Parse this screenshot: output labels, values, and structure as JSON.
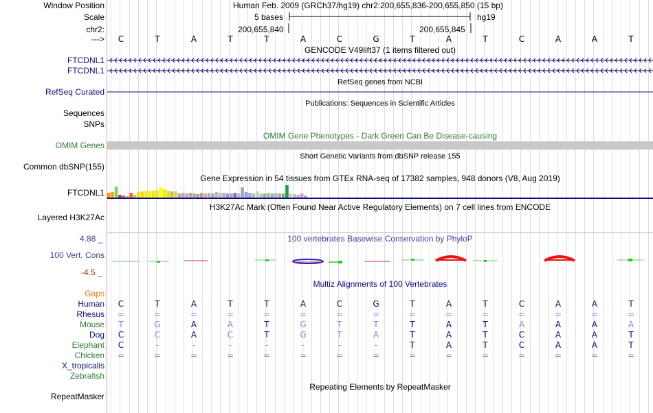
{
  "header": {
    "window_position_label": "Window Position",
    "window_position_value": "Human Feb. 2009 (GRCh37/hg19)   chr2:200,655,836-200,655,850 (15 bp)",
    "scale_label": "Scale",
    "scale_value": "5 bases",
    "scale_assembly": "hg19",
    "chrom_label": "chr2:",
    "coord_left": "200,655,840",
    "coord_right": "200,655,845",
    "strand_label": "--->"
  },
  "bases": [
    "C",
    "T",
    "A",
    "T",
    "T",
    "A",
    "C",
    "G",
    "T",
    "A",
    "T",
    "C",
    "A",
    "A",
    "T"
  ],
  "gencode": {
    "title": "GENCODE V49lift37 (1 items filtered out)",
    "transcripts": [
      "FTCDNL1",
      "FTCDNL1"
    ]
  },
  "refseq": {
    "title": "RefSeq genes from NCBI",
    "label": "RefSeq Curated"
  },
  "publications": {
    "title": "Publications: Sequences in Scientific Articles"
  },
  "labels": {
    "sequences": "Sequences",
    "snps": "SNPs",
    "common_dbsnp": "Common dbSNP(155)"
  },
  "omim": {
    "title": "OMIM Gene Phenotypes - Dark Green Can Be Disease-causing",
    "label": "OMIM Genes",
    "color": "#2e7d32"
  },
  "dbsnp": {
    "title": "Short Genetic Variants from dbSNP release 155"
  },
  "gtex": {
    "title": "Gene Expression in 54 tissues from GTEx RNA-seq of 17382 samples, 948 donors (V8, Aug 2019)",
    "label": "FTCDNL1",
    "bar_colors": [
      "#ff9900",
      "#ffaa00",
      "#88cc66",
      "#cc3333",
      "#996699",
      "#aaaaaa",
      "#ff6600",
      "#bbbbbb",
      "#ffdd00",
      "#eedd00",
      "#eeee33",
      "#ffee00",
      "#ddee00",
      "#eedd44",
      "#ffff00",
      "#eeee00",
      "#dddd33",
      "#ccbb33",
      "#ddcc66",
      "#aaaaaa",
      "#bbaa99",
      "#cc99cc",
      "#bbaa88",
      "#aaaaaa",
      "#999999",
      "#cc9988",
      "#bbbbbb",
      "#ccaa99",
      "#aaaaaa",
      "#bbbbbb",
      "#ccbbaa",
      "#aaaacc",
      "#9999bb",
      "#cc99cc",
      "#8866cc",
      "#bbbbbb",
      "#99aacc",
      "#9999ff",
      "#aaaaaa",
      "#bbbbbb",
      "#cccccc",
      "#aaccaa",
      "#99aa99",
      "#aabb99",
      "#aaaaaa",
      "#bbbbbb",
      "#aaaaaa",
      "#999999",
      "#229944",
      "#cccccc",
      "#bbbbbb",
      "#ddaaaa",
      "#cc99cc",
      "#aaaaaa"
    ],
    "bar_values": [
      0.35,
      0.4,
      0.8,
      0.2,
      0.15,
      0.1,
      0.35,
      0.2,
      0.4,
      0.45,
      0.5,
      0.5,
      0.5,
      0.55,
      0.75,
      0.6,
      0.5,
      0.45,
      0.45,
      0.3,
      0.35,
      0.3,
      0.35,
      0.3,
      0.25,
      0.35,
      0.3,
      0.35,
      0.3,
      0.4,
      0.35,
      0.35,
      0.3,
      0.3,
      0.35,
      0.3,
      0.75,
      0.4,
      0.35,
      0.3,
      0.45,
      0.3,
      0.3,
      0.35,
      0.3,
      0.35,
      0.3,
      0.3,
      0.9,
      0.3,
      0.25,
      0.2,
      0.3,
      0.15
    ]
  },
  "h3k27ac": {
    "title": "H3K27Ac Mark (Often Found Near Active Regulatory Elements) on 7 cell lines from ENCODE",
    "label": "Layered H3K27Ac"
  },
  "phylop": {
    "title": "100 vertebrates Basewise Conservation by PhyloP",
    "label": "100 Vert. Cons",
    "max": "4.88 _",
    "min": "-4.5 _",
    "title_color": "#3d3d99",
    "label_color": "#3d3d99",
    "min_color": "#8b3a0f"
  },
  "multiz": {
    "title": "Multiz Alignments of 100 Vertebrates",
    "gaps_label": "Gaps",
    "gaps_color": "#d97a00",
    "species": [
      {
        "name": "Human",
        "color": "#0c0c78",
        "row": [
          "C",
          "T",
          "A",
          "T",
          "T",
          "A",
          "C",
          "G",
          "T",
          "A",
          "T",
          "C",
          "A",
          "A",
          "T"
        ]
      },
      {
        "name": "Rhesus",
        "color": "#0c0c78",
        "row": [
          "=",
          "=",
          "=",
          "=",
          "=",
          "=",
          "=",
          "=",
          "=",
          "=",
          "=",
          "=",
          "=",
          "=",
          "="
        ]
      },
      {
        "name": "Mouse",
        "color": "#2e7d32",
        "row": [
          "T",
          "G",
          "A",
          "A",
          "T",
          "G",
          "T",
          "T",
          "T",
          "A",
          "T",
          "A",
          "A",
          "A",
          "A"
        ]
      },
      {
        "name": "Dog",
        "color": "#0c0c78",
        "row": [
          "C",
          "C",
          "A",
          "C",
          "T",
          "G",
          "T",
          "A",
          "T",
          "A",
          "T",
          "C",
          "A",
          "A",
          "T"
        ]
      },
      {
        "name": "Elephant",
        "color": "#2e7d32",
        "row": [
          "C",
          "-",
          "-",
          "-",
          "-",
          "-",
          "-",
          "-",
          "T",
          "A",
          "T",
          "C",
          "A",
          "A",
          "T"
        ]
      },
      {
        "name": "Chicken",
        "color": "#2e7d32",
        "row": [
          "=",
          "=",
          "=",
          "=",
          "=",
          "=",
          "=",
          "=",
          "=",
          "=",
          "=",
          "=",
          "=",
          "=",
          "="
        ]
      },
      {
        "name": "X_tropicalis",
        "color": "#0c0c78",
        "row": []
      },
      {
        "name": "Zebrafish",
        "color": "#2e7d32",
        "row": []
      }
    ]
  },
  "repeatmasker": {
    "title": "Repeating Elements by RepeatMasker",
    "label": "RepeatMasker"
  }
}
